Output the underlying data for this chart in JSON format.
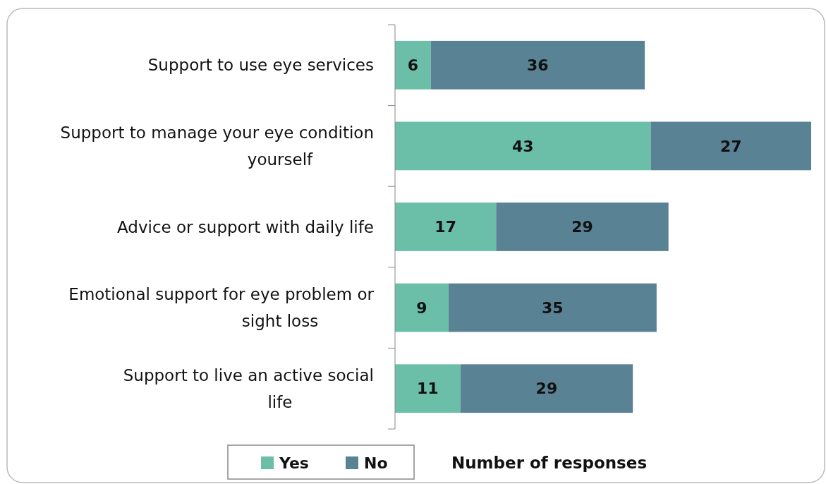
{
  "chart_data": {
    "type": "bar",
    "orientation": "horizontal",
    "stacked": true,
    "data_labels": true,
    "legend": "bottom",
    "grid": false,
    "xlabel": "Number of responses",
    "categories": [
      "Support to use eye services",
      "Support to manage your eye condition yourself",
      "Advice or support with daily life",
      "Emotional support for eye problem or sight loss",
      "Support to live an active social life"
    ],
    "series": [
      {
        "name": "Yes",
        "color": "#6bbea8",
        "values": [
          6,
          43,
          17,
          9,
          11
        ]
      },
      {
        "name": "No",
        "color": "#5a8295",
        "values": [
          36,
          27,
          29,
          35,
          29
        ]
      }
    ]
  }
}
